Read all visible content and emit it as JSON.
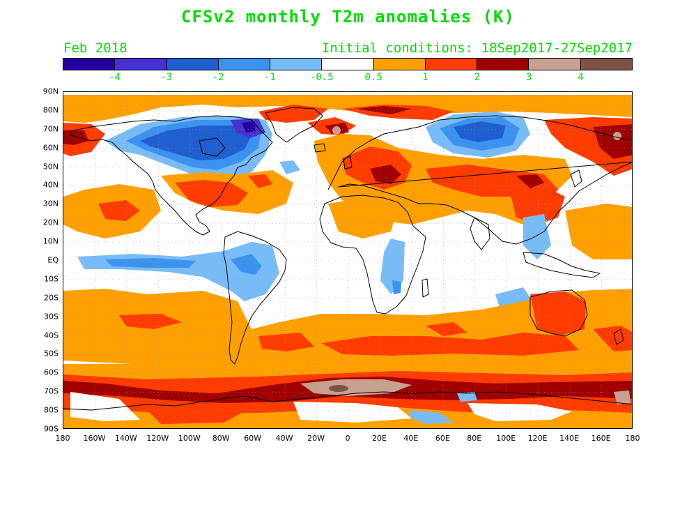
{
  "title": "CFSv2 monthly T2m anomalies (K)",
  "valid_month": "Feb 2018",
  "initial_conditions": "Initial conditions: 18Sep2017-27Sep2017",
  "colorbar": {
    "colors": [
      "#2400a0",
      "#4632d2",
      "#1f5fd0",
      "#3c93ef",
      "#78bcf7",
      "#ffffff",
      "#ffa000",
      "#ff3c00",
      "#a00000",
      "#c8a090",
      "#7e5246"
    ],
    "labels": [
      "-4",
      "-3",
      "-2",
      "-1",
      "-0.5",
      "0.5",
      "1",
      "2",
      "3",
      "4"
    ]
  },
  "lat_labels": [
    "90N",
    "80N",
    "70N",
    "60N",
    "50N",
    "40N",
    "30N",
    "20N",
    "10N",
    "EQ",
    "10S",
    "20S",
    "30S",
    "40S",
    "50S",
    "60S",
    "70S",
    "80S",
    "90S"
  ],
  "lon_labels": [
    "180",
    "160W",
    "140W",
    "120W",
    "100W",
    "80W",
    "60W",
    "40W",
    "20W",
    "0",
    "20E",
    "40E",
    "60E",
    "80E",
    "100E",
    "120E",
    "140E",
    "160E",
    "180"
  ],
  "colors": {
    "title_text": "#00dd00",
    "coastline": "#000000",
    "gridline": "#999999"
  }
}
